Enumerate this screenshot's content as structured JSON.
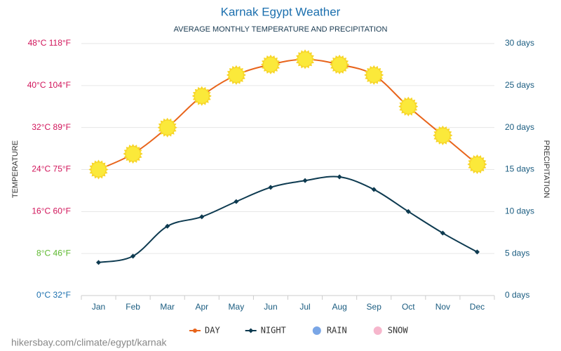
{
  "chart_data": {
    "type": "line",
    "title": "Karnak Egypt Weather",
    "subtitle": "AVERAGE MONTHLY TEMPERATURE AND PRECIPITATION",
    "y_label": "TEMPERATURE",
    "y2_label": "PRECIPITATION",
    "watermark": "hikersbay.com/climate/egypt/karnak",
    "categories": [
      "Jan",
      "Feb",
      "Mar",
      "Apr",
      "May",
      "Jun",
      "Jul",
      "Aug",
      "Sep",
      "Oct",
      "Nov",
      "Dec"
    ],
    "series": [
      {
        "name": "DAY",
        "color": "#e8641b",
        "marker": "sun",
        "values": [
          24,
          27,
          32,
          38,
          42,
          44,
          45,
          44,
          42,
          36,
          30.5,
          25
        ]
      },
      {
        "name": "NIGHT",
        "color": "#0d3a50",
        "marker": "diamond",
        "values": [
          6.3,
          7.5,
          13.2,
          15,
          17.9,
          20.6,
          21.9,
          22.6,
          20.2,
          16,
          11.9,
          8.3
        ]
      }
    ],
    "legend_extra": [
      {
        "name": "RAIN",
        "color": "#7aa6e6"
      },
      {
        "name": "SNOW",
        "color": "#f6b6cc"
      }
    ],
    "ylim": [
      0,
      48
    ],
    "yticks": [
      {
        "value": 0,
        "label": "0°C 32°F"
      },
      {
        "value": 8,
        "label": "8°C 46°F"
      },
      {
        "value": 16,
        "label": "16°C 60°F"
      },
      {
        "value": 24,
        "label": "24°C 75°F"
      },
      {
        "value": 32,
        "label": "32°C 89°F"
      },
      {
        "value": 40,
        "label": "40°C 104°F"
      },
      {
        "value": 48,
        "label": "48°C 118°F"
      }
    ],
    "ytick_colors": [
      "#1b6fae",
      "#5cb82e",
      "#d1145a",
      "#d1145a",
      "#d1145a",
      "#d1145a",
      "#d1145a"
    ],
    "y2lim": [
      0,
      30
    ],
    "y2ticks": [
      {
        "value": 0,
        "label": "0 days"
      },
      {
        "value": 5,
        "label": "5 days"
      },
      {
        "value": 10,
        "label": "10 days"
      },
      {
        "value": 15,
        "label": "15 days"
      },
      {
        "value": 20,
        "label": "20 days"
      },
      {
        "value": 25,
        "label": "25 days"
      },
      {
        "value": 30,
        "label": "30 days"
      }
    ],
    "grid": true
  }
}
